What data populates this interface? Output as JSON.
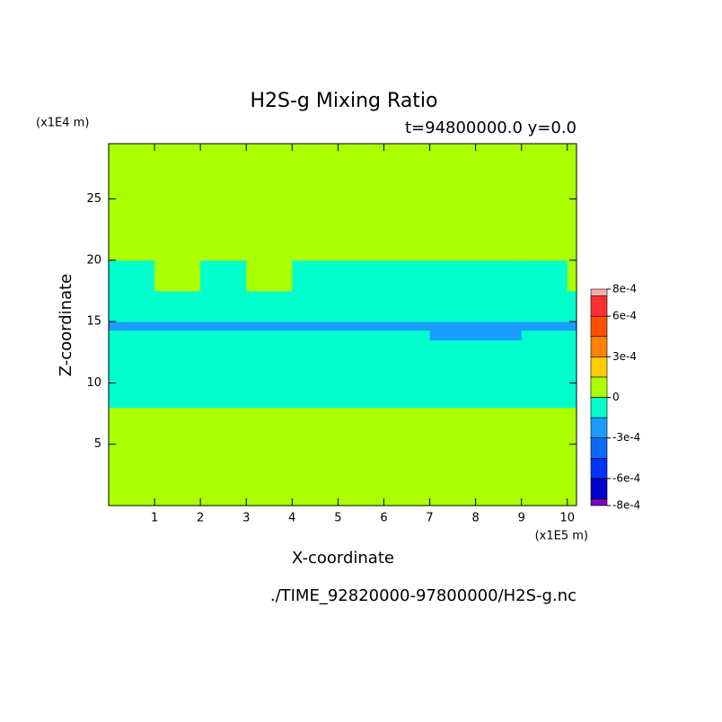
{
  "chart_data": {
    "type": "contour",
    "title": "H2S-g Mixing Ratio",
    "subtitle": "t=94800000.0 y=0.0",
    "x_label": "X-coordinate",
    "y_label": "Z-coordinate",
    "x_unit": "(x1E5 m)",
    "y_unit": "(x1E4 m)",
    "footer": "./TIME_92820000-97800000/H2S-g.nc",
    "xlim": [
      0,
      10.2
    ],
    "xticks": [
      1,
      2,
      3,
      4,
      5,
      6,
      7,
      8,
      9,
      10
    ],
    "ylim": [
      0,
      29.5
    ],
    "yticks": [
      5,
      10,
      15,
      20,
      25
    ],
    "field": {
      "x": [
        0,
        1,
        2,
        3,
        4,
        5,
        6,
        7,
        8,
        9,
        10,
        10.2
      ],
      "z": [
        0,
        8,
        13.5,
        14.3,
        15,
        17.5,
        20,
        29.5
      ],
      "values": [
        [
          5e-05,
          5e-05,
          5e-05,
          5e-05,
          5e-05,
          5e-05,
          5e-05,
          5e-05,
          5e-05,
          5e-05,
          5e-05
        ],
        [
          -5e-05,
          -5e-05,
          -5e-05,
          -5e-05,
          -5e-05,
          -5e-05,
          -5e-05,
          -5e-05,
          -5e-05,
          -5e-05,
          -5e-05
        ],
        [
          -5e-05,
          -5e-05,
          -5e-05,
          -5e-05,
          -5e-05,
          -5e-05,
          -5e-05,
          -0.0002,
          -0.0002,
          -5e-05,
          -5e-05
        ],
        [
          -0.0002,
          -0.0002,
          -0.0002,
          -0.0002,
          -0.0002,
          -0.0002,
          -0.0002,
          -0.0002,
          -0.0002,
          -0.0002,
          -0.0002
        ],
        [
          -5e-05,
          -5e-05,
          -5e-05,
          -5e-05,
          -5e-05,
          -5e-05,
          -5e-05,
          -5e-05,
          -5e-05,
          -5e-05,
          -5e-05
        ],
        [
          -5e-05,
          5e-05,
          -5e-05,
          5e-05,
          -5e-05,
          -5e-05,
          -5e-05,
          -5e-05,
          -5e-05,
          -5e-05,
          5e-05
        ],
        [
          5e-05,
          5e-05,
          5e-05,
          5e-05,
          5e-05,
          5e-05,
          5e-05,
          5e-05,
          5e-05,
          5e-05,
          5e-05
        ]
      ]
    },
    "colorbar": {
      "levels": [
        -0.0008,
        -0.00075,
        -0.0006,
        -0.00045,
        -0.0003,
        -0.00015,
        0,
        0.00015,
        0.0003,
        0.00045,
        0.0006,
        0.00075,
        0.0008
      ],
      "colors": [
        "#8000c0",
        "#0000cc",
        "#0032ff",
        "#0a6aff",
        "#1a9cff",
        "#00ffcc",
        "#aaff00",
        "#ffcc00",
        "#ff8000",
        "#ff5000",
        "#ff3030",
        "#ffaaaa"
      ],
      "ticks": [
        {
          "value": -0.0008,
          "label": "-8e-4"
        },
        {
          "value": -0.0006,
          "label": "-6e-4"
        },
        {
          "value": -0.0003,
          "label": "-3e-4"
        },
        0,
        {
          "value": 0.0003,
          "label": "3e-4"
        },
        {
          "value": 0.0006,
          "label": "6e-4"
        },
        {
          "value": 0.0008,
          "label": "8e-4"
        }
      ]
    }
  }
}
